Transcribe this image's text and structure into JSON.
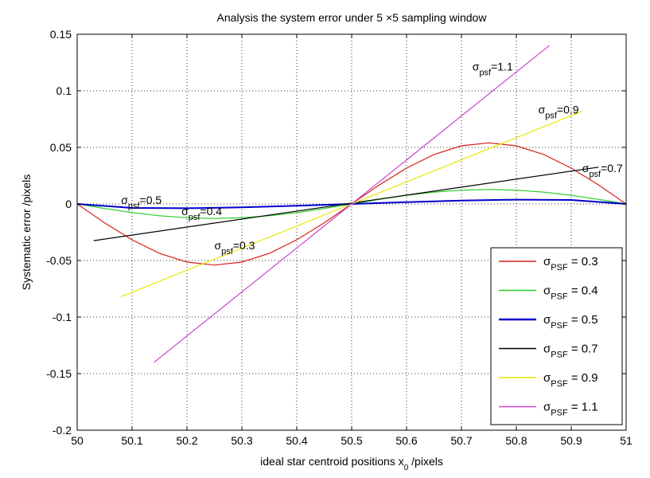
{
  "chart_data": {
    "type": "line",
    "title": "Analysis the system error under 5 ×5 sampling window",
    "xlabel_main": "ideal star centroid positions x",
    "xlabel_sub": "0",
    "xlabel_tail": " /pixels",
    "ylabel": "Systematic error /pixels",
    "xlim": [
      50,
      51
    ],
    "ylim": [
      -0.2,
      0.15
    ],
    "x_ticks": [
      50,
      50.1,
      50.2,
      50.3,
      50.4,
      50.5,
      50.6,
      50.7,
      50.8,
      50.9,
      51
    ],
    "x_tick_labels": [
      "50",
      "50.1",
      "50.2",
      "50.3",
      "50.4",
      "50.5",
      "50.6",
      "50.7",
      "50.8",
      "50.9",
      "51"
    ],
    "y_ticks": [
      -0.2,
      -0.15,
      -0.1,
      -0.05,
      0,
      0.05,
      0.1,
      0.15
    ],
    "y_tick_labels": [
      "-0.2",
      "-0.15",
      "-0.1",
      "-0.05",
      "0",
      "0.05",
      "0.1",
      "0.15"
    ],
    "grid": true,
    "legend_position": "bottom-right",
    "series": [
      {
        "sigma": "0.3",
        "legend_label": "= 0.3",
        "color": "#d42020",
        "x": [
          50,
          50.05,
          50.1,
          50.15,
          50.2,
          50.25,
          50.3,
          50.35,
          50.4,
          50.45,
          50.5,
          50.55,
          50.6,
          50.65,
          50.7,
          50.75,
          50.8,
          50.85,
          50.9,
          50.95,
          51
        ],
        "y": [
          0,
          -0.0167,
          -0.0317,
          -0.0437,
          -0.0514,
          -0.054,
          -0.0514,
          -0.0437,
          -0.0317,
          -0.0167,
          0,
          0.0167,
          0.0317,
          0.0437,
          0.0514,
          0.054,
          0.0514,
          0.0437,
          0.0317,
          0.0167,
          0
        ]
      },
      {
        "sigma": "0.4",
        "legend_label": "= 0.4",
        "color": "#22cc22",
        "x": [
          50,
          50.05,
          50.1,
          50.15,
          50.2,
          50.25,
          50.3,
          50.35,
          50.4,
          50.45,
          50.5,
          50.55,
          50.6,
          50.65,
          50.7,
          50.75,
          50.8,
          50.85,
          50.9,
          50.95,
          51
        ],
        "y": [
          0,
          -0.004,
          -0.0076,
          -0.0104,
          -0.0122,
          -0.0128,
          -0.0122,
          -0.0104,
          -0.0076,
          -0.004,
          0,
          0.004,
          0.0076,
          0.0104,
          0.0122,
          0.0128,
          0.0122,
          0.0104,
          0.0076,
          0.004,
          0
        ]
      },
      {
        "sigma": "0.5",
        "legend_label": "= 0.5",
        "color": "#0000cc",
        "x": [
          50,
          50.1,
          50.2,
          50.3,
          50.4,
          50.5,
          50.6,
          50.7,
          50.8,
          50.9,
          51
        ],
        "y": [
          0,
          -0.0035,
          -0.0038,
          -0.003,
          -0.0016,
          0,
          0.0016,
          0.003,
          0.0038,
          0.0035,
          0
        ]
      },
      {
        "sigma": "0.7",
        "legend_label": "= 0.7",
        "color": "#000000",
        "x": [
          50.03,
          50.95
        ],
        "y": [
          -0.0325,
          0.0325
        ]
      },
      {
        "sigma": "0.9",
        "legend_label": "= 0.9",
        "color": "#e8e800",
        "x": [
          50.08,
          50.92
        ],
        "y": [
          -0.082,
          0.082
        ]
      },
      {
        "sigma": "1.1",
        "legend_label": "= 1.1",
        "color": "#cc44cc",
        "x": [
          50.14,
          50.86
        ],
        "y": [
          -0.14,
          0.14
        ]
      }
    ],
    "annotations": [
      {
        "sigma": "1.1",
        "text": "=1.1",
        "at": [
          50.72,
          0.118
        ]
      },
      {
        "sigma": "0.9",
        "text": "=0.9",
        "at": [
          50.84,
          0.08
        ]
      },
      {
        "sigma": "0.7",
        "text": "=0.7",
        "at": [
          50.92,
          0.028
        ]
      },
      {
        "sigma": "0.5",
        "text": "=0.5",
        "at": [
          50.08,
          0.0
        ]
      },
      {
        "sigma": "0.4",
        "text": "=0.4",
        "at": [
          50.19,
          -0.01
        ]
      },
      {
        "sigma": "0.3",
        "text": "=0.3",
        "at": [
          50.25,
          -0.04
        ]
      }
    ]
  }
}
